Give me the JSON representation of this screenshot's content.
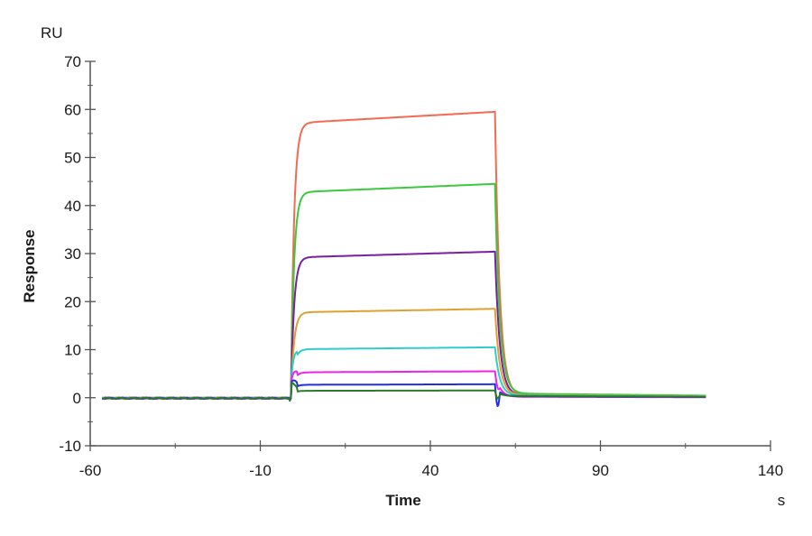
{
  "chart_data": {
    "type": "line",
    "title": "",
    "xlabel": "Time",
    "ylabel": "Response",
    "x_unit": "s",
    "y_unit": "RU",
    "xlim": [
      -60,
      140
    ],
    "ylim": [
      -10,
      70
    ],
    "x_ticks": [
      -60,
      -10,
      40,
      90,
      140
    ],
    "y_ticks": [
      -10,
      0,
      10,
      20,
      30,
      40,
      50,
      60,
      70
    ],
    "grid": false,
    "legend": "none",
    "association_start": -1,
    "dissociation_start": 59,
    "x_start": -56.5,
    "x_end": 121,
    "series": [
      {
        "name": "curve-1",
        "color": "#f26b50",
        "plateau": 59.5,
        "tail": 0.5
      },
      {
        "name": "curve-2",
        "color": "#3cc83c",
        "plateau": 44.5,
        "tail": 0.9
      },
      {
        "name": "curve-3",
        "color": "#7a1fa0",
        "plateau": 30.4,
        "tail": 0.5
      },
      {
        "name": "curve-4",
        "color": "#e0a030",
        "plateau": 18.5,
        "tail": 0.6
      },
      {
        "name": "curve-5",
        "color": "#30cccc",
        "plateau": 10.5,
        "tail": 0.5
      },
      {
        "name": "curve-6",
        "color": "#f020f0",
        "plateau": 5.5,
        "tail": 0.2
      },
      {
        "name": "curve-7",
        "color": "#2030e0",
        "plateau": 2.8,
        "tail": 0.3
      },
      {
        "name": "curve-8",
        "color": "#2a7a2a",
        "plateau": 1.5,
        "tail": 0.4
      }
    ]
  },
  "axes": {
    "y_unit_label": "RU",
    "y_title": "Response",
    "x_title": "Time",
    "x_unit_label": "s"
  }
}
